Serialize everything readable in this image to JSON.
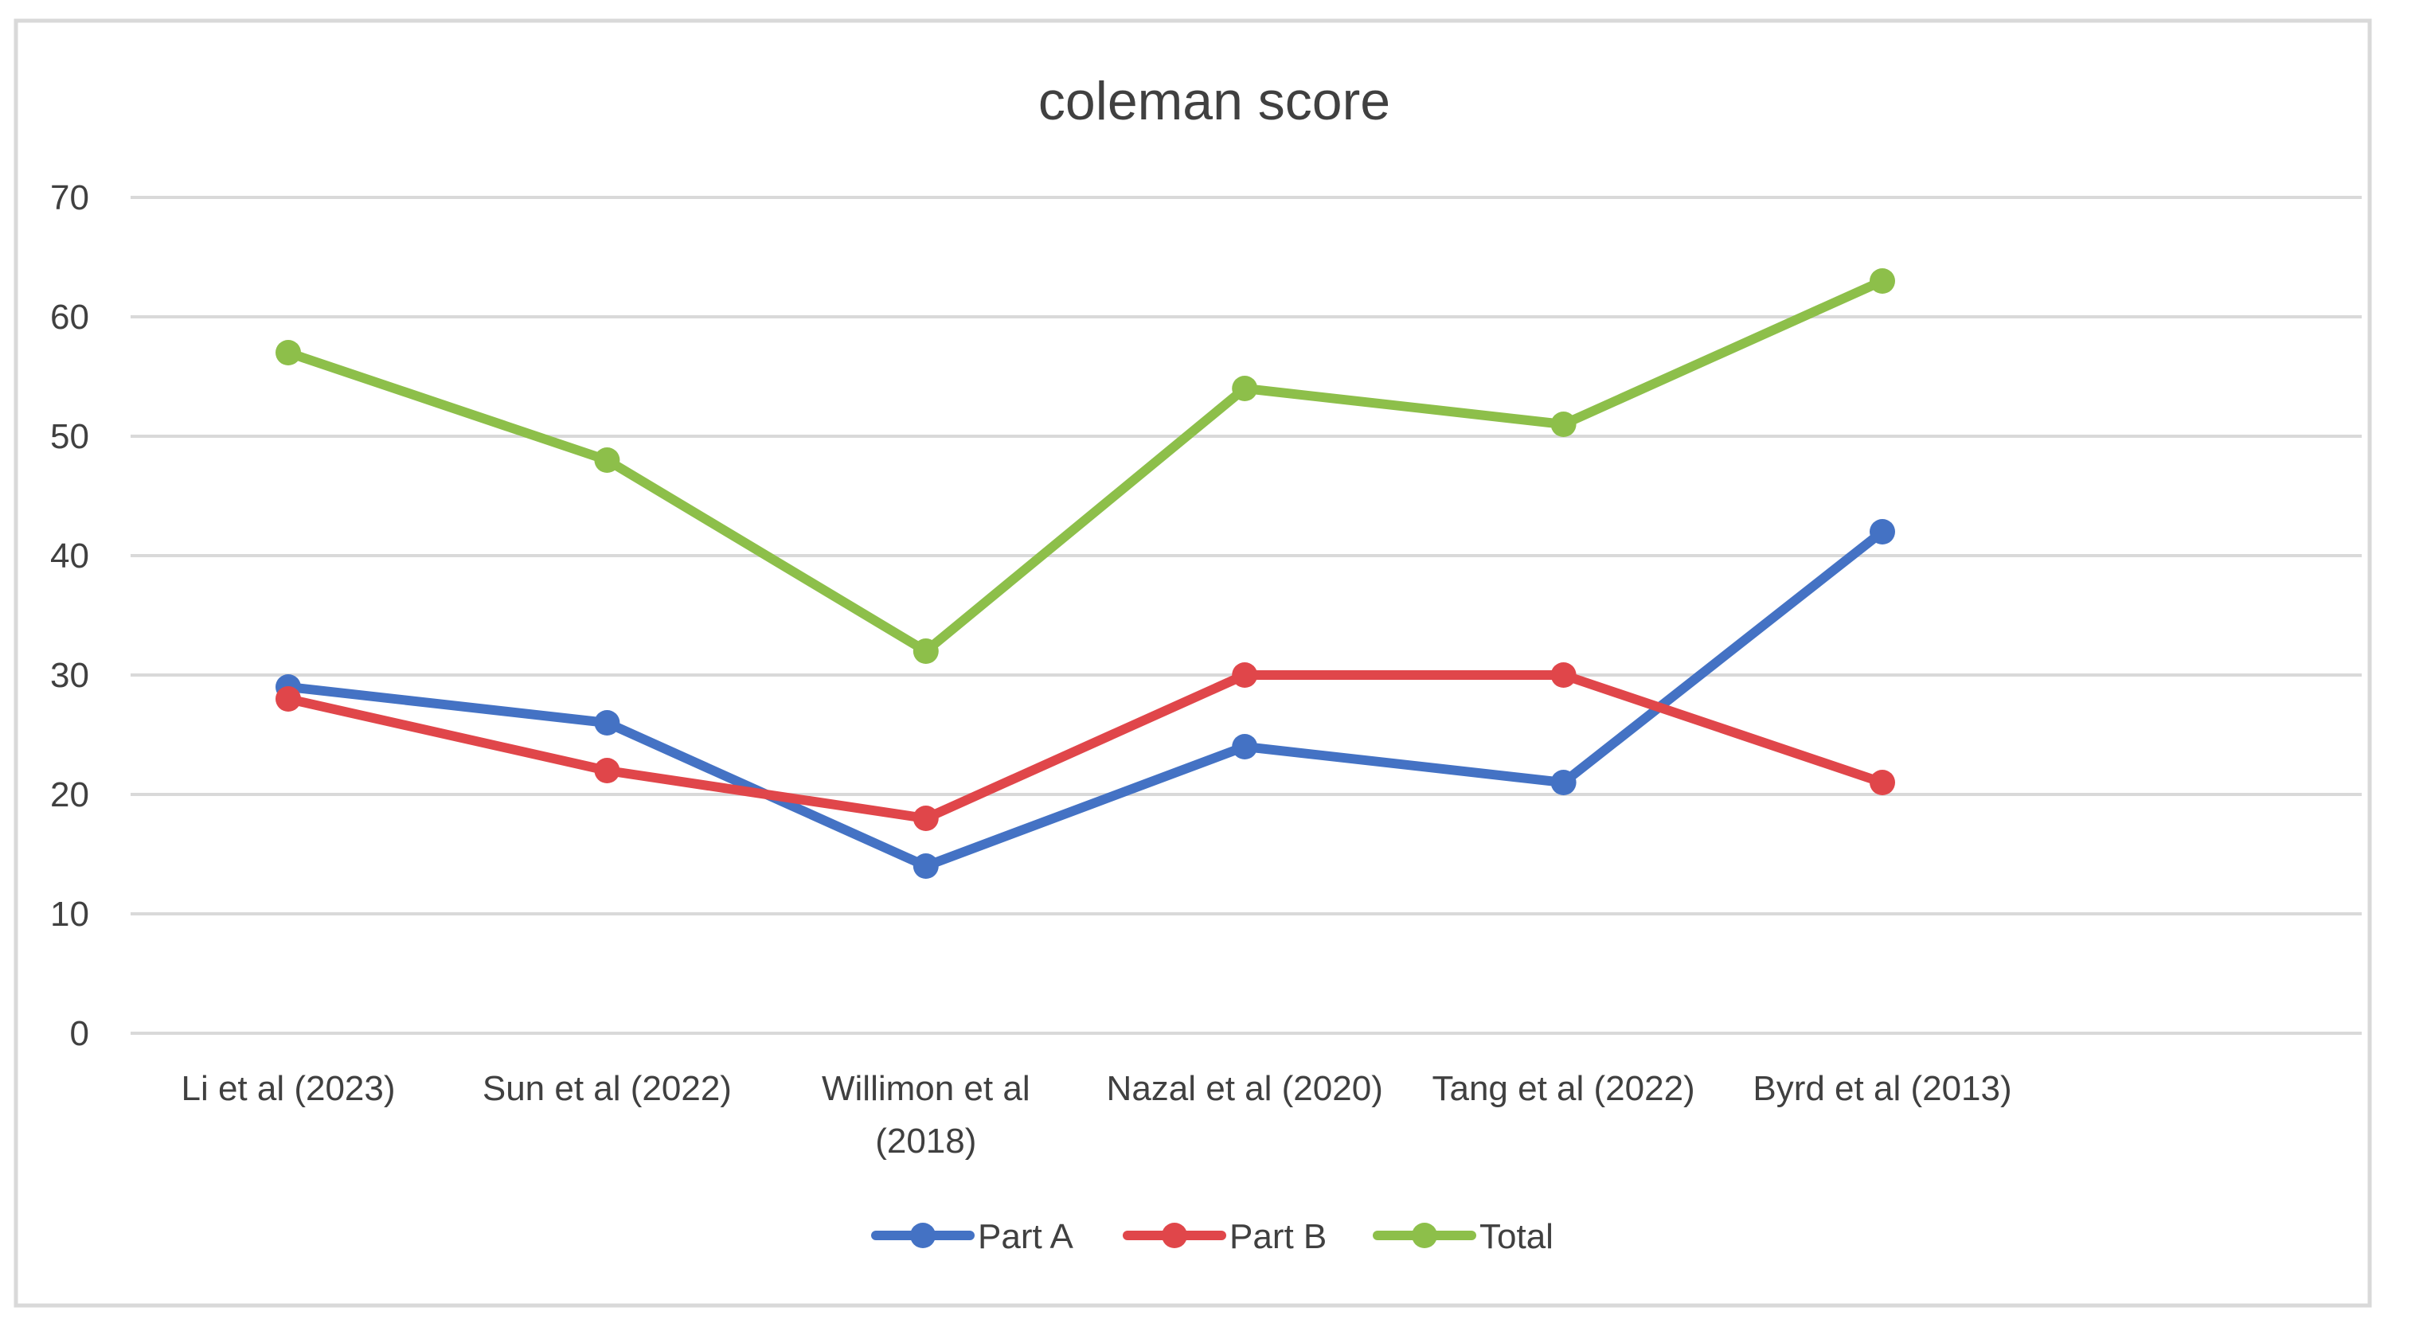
{
  "chart_data": {
    "type": "line",
    "title": "coleman score",
    "xlabel": "",
    "ylabel": "",
    "categories": [
      "Li et al (2023)",
      "Sun et al (2022)",
      "Willimon et al (2018)",
      "Nazal et al (2020)",
      "Tang et al (2022)",
      "Byrd et al (2013)"
    ],
    "category_lines": [
      [
        "Li et al (2023)"
      ],
      [
        "Sun et al (2022)"
      ],
      [
        "Willimon et al",
        "(2018)"
      ],
      [
        "Nazal et al (2020)"
      ],
      [
        "Tang et al (2022)"
      ],
      [
        "Byrd et al (2013)"
      ]
    ],
    "ylim": [
      0,
      70
    ],
    "yticks": [
      "0",
      "10",
      "20",
      "30",
      "40",
      "50",
      "60",
      "70"
    ],
    "grid": true,
    "legend_position": "bottom",
    "series": [
      {
        "name": "Part A",
        "color": "#4472C4",
        "values": [
          29,
          26,
          14,
          24,
          21,
          42
        ]
      },
      {
        "name": "Part B",
        "color": "#E0464A",
        "values": [
          28,
          22,
          18,
          30,
          30,
          21
        ]
      },
      {
        "name": "Total",
        "color": "#8DBF4A",
        "values": [
          57,
          48,
          32,
          54,
          51,
          63
        ]
      }
    ]
  }
}
